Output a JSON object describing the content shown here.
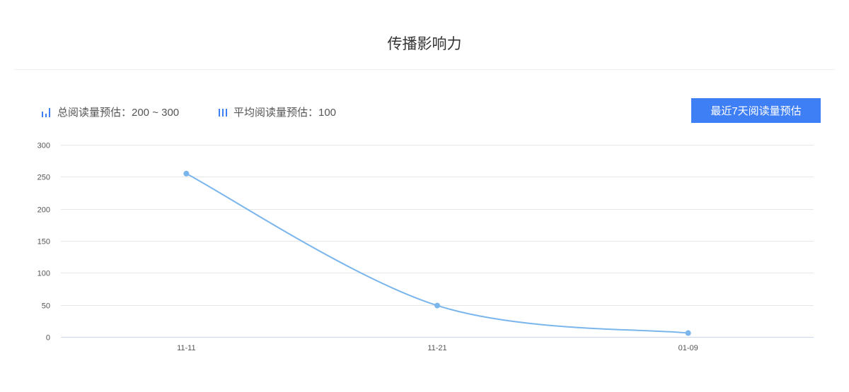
{
  "header": {
    "title": "传播影响力"
  },
  "stats": [
    {
      "icon": "bar-chart-icon",
      "label": "总阅读量预估：200 ~ 300"
    },
    {
      "icon": "columns-icon",
      "label": "平均阅读量预估：100"
    }
  ],
  "actions": {
    "recent_button": "最近7天阅读量预估"
  },
  "colors": {
    "accent": "#3f7ff6",
    "line": "#7ab5ec",
    "grid": "#e6e6e6"
  },
  "chart_data": {
    "type": "line",
    "smooth": true,
    "categories": [
      "11-11",
      "11-21",
      "01-09"
    ],
    "values": [
      255,
      49,
      6
    ],
    "ylim": [
      0,
      300
    ],
    "yticks": [
      "0",
      "50",
      "100",
      "150",
      "200",
      "250",
      "300"
    ],
    "grid": true,
    "xlabel": "",
    "ylabel": ""
  }
}
